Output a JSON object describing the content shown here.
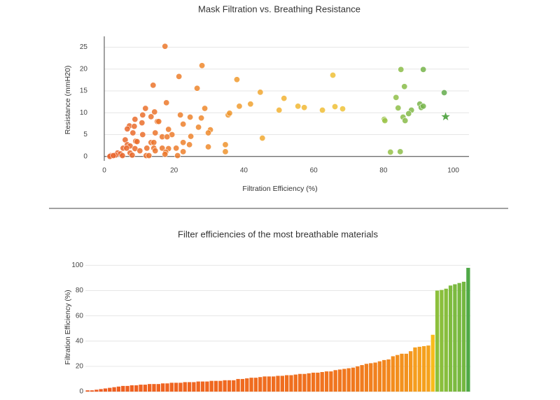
{
  "chart_data": [
    {
      "type": "scatter",
      "title": "Mask Filtration vs. Breathing Resistance",
      "x_label": "Filtration Efficiency (%)",
      "y_label": "Resistance (mmH20)",
      "xlim": [
        -2,
        104.5
      ],
      "ylim": [
        -1,
        27
      ],
      "xticks": [
        0,
        20,
        40,
        60,
        80,
        100
      ],
      "yticks": [
        0,
        5,
        10,
        15,
        20,
        25
      ],
      "grid": true,
      "colorscale": [
        [
          0,
          "#e8602c"
        ],
        [
          30,
          "#ee8a2c"
        ],
        [
          50,
          "#f2b232"
        ],
        [
          70,
          "#eec437"
        ],
        [
          80,
          "#9cc448"
        ],
        [
          100,
          "#5aa84c"
        ]
      ],
      "x": [
        17.4,
        28,
        21.4,
        26.6,
        14,
        17.8,
        11.8,
        14.4,
        11,
        21.8,
        28.8,
        24.6,
        27.8,
        8.8,
        13.4,
        15.2,
        15.6,
        22.6,
        10.8,
        7.2,
        8.6,
        27,
        6.6,
        18.4,
        30.4,
        29.8,
        8.2,
        14.6,
        16.6,
        11,
        19.4,
        24.8,
        6,
        18,
        9,
        9.4,
        13.4,
        14.2,
        22.6,
        6.6,
        7.4,
        24.4,
        34.7,
        5.4,
        6.4,
        8.8,
        12.2,
        14.2,
        16.6,
        18.4,
        20.6,
        29.8,
        10.2,
        14.6,
        17.6,
        22.6,
        34.7,
        3.8,
        4.6,
        7.4,
        8,
        5.2,
        3.2,
        1.8,
        1.6,
        2.6,
        12,
        12.8,
        21,
        17.4,
        35.5,
        35.9,
        38.7,
        38,
        41.9,
        44.7,
        45.3,
        50.1,
        51.5,
        55.5,
        57.3,
        62.5,
        65.5,
        66.1,
        68.3,
        80.2,
        80.4,
        82,
        85,
        84.8,
        83.6,
        84.2,
        86,
        85.6,
        86.2,
        88,
        87.2,
        90.4,
        90.8,
        91.4,
        91.4,
        97.4
      ],
      "y": [
        25.2,
        20.8,
        18.3,
        15.6,
        16.3,
        12.3,
        11,
        10.2,
        9.5,
        9.5,
        11,
        9,
        8.8,
        8.5,
        9.1,
        8,
        8,
        7.4,
        7.7,
        7,
        6.9,
        6.7,
        6.3,
        6.2,
        6.1,
        5.4,
        5.4,
        5.4,
        4.5,
        5,
        5,
        4.6,
        3.8,
        4.5,
        3.5,
        3.4,
        3.2,
        3.2,
        3.2,
        2.7,
        2.4,
        2.7,
        2.7,
        1.9,
        1.9,
        1.8,
        1.9,
        1.9,
        1.9,
        1.8,
        1.9,
        2.2,
        1.3,
        1.3,
        1,
        1.1,
        1.1,
        0.8,
        0.6,
        0.8,
        0.3,
        0.2,
        0.3,
        0.2,
        0,
        0.2,
        0.2,
        0.2,
        0.2,
        0.5,
        9.5,
        9.9,
        11.5,
        17.6,
        12,
        14.7,
        4.2,
        10.6,
        13.3,
        11.5,
        11.2,
        10.6,
        18.6,
        11.4,
        10.9,
        8.5,
        8.2,
        1,
        19.9,
        1.1,
        13.5,
        11.1,
        16,
        9,
        8.2,
        10.6,
        9.8,
        12,
        11.2,
        19.9,
        11.5,
        14.6
      ],
      "star": {
        "x": 97.8,
        "y": 9.1,
        "color": "#5aa84c"
      }
    },
    {
      "type": "bar",
      "title": "Filter efficiencies of the most breathable materials",
      "y_label": "Filtration Efficiency (%)",
      "ylim": [
        0,
        103
      ],
      "yticks": [
        0,
        20,
        40,
        60,
        80,
        100
      ],
      "grid": true,
      "colorscale": [
        [
          0,
          "#ee5a22"
        ],
        [
          20,
          "#f07a1e"
        ],
        [
          36,
          "#f5a01e"
        ],
        [
          45,
          "#f8bc1c"
        ],
        [
          80,
          "#8cc03c"
        ],
        [
          100,
          "#48a648"
        ]
      ],
      "values": [
        1,
        1,
        1.5,
        2,
        2.5,
        3,
        3.5,
        4,
        4.5,
        4.5,
        5,
        5,
        5.5,
        5.5,
        6,
        6,
        6,
        6.5,
        6.5,
        7,
        7,
        7,
        7.5,
        7.5,
        7.5,
        8,
        8,
        8,
        8.5,
        8.5,
        8.5,
        9,
        9,
        9,
        10,
        10,
        10.5,
        11,
        11,
        11.5,
        12,
        12,
        12,
        12.5,
        12.5,
        13,
        13,
        13.5,
        14,
        14,
        14.5,
        15,
        15,
        15.5,
        16,
        16,
        17,
        17.5,
        18,
        18.5,
        19,
        20,
        21,
        22,
        22.5,
        23,
        24,
        25,
        25.5,
        28,
        29,
        30,
        30,
        32,
        35,
        35.5,
        36,
        36.5,
        45,
        80,
        80.5,
        81.5,
        84,
        85,
        86,
        87,
        98
      ]
    }
  ]
}
